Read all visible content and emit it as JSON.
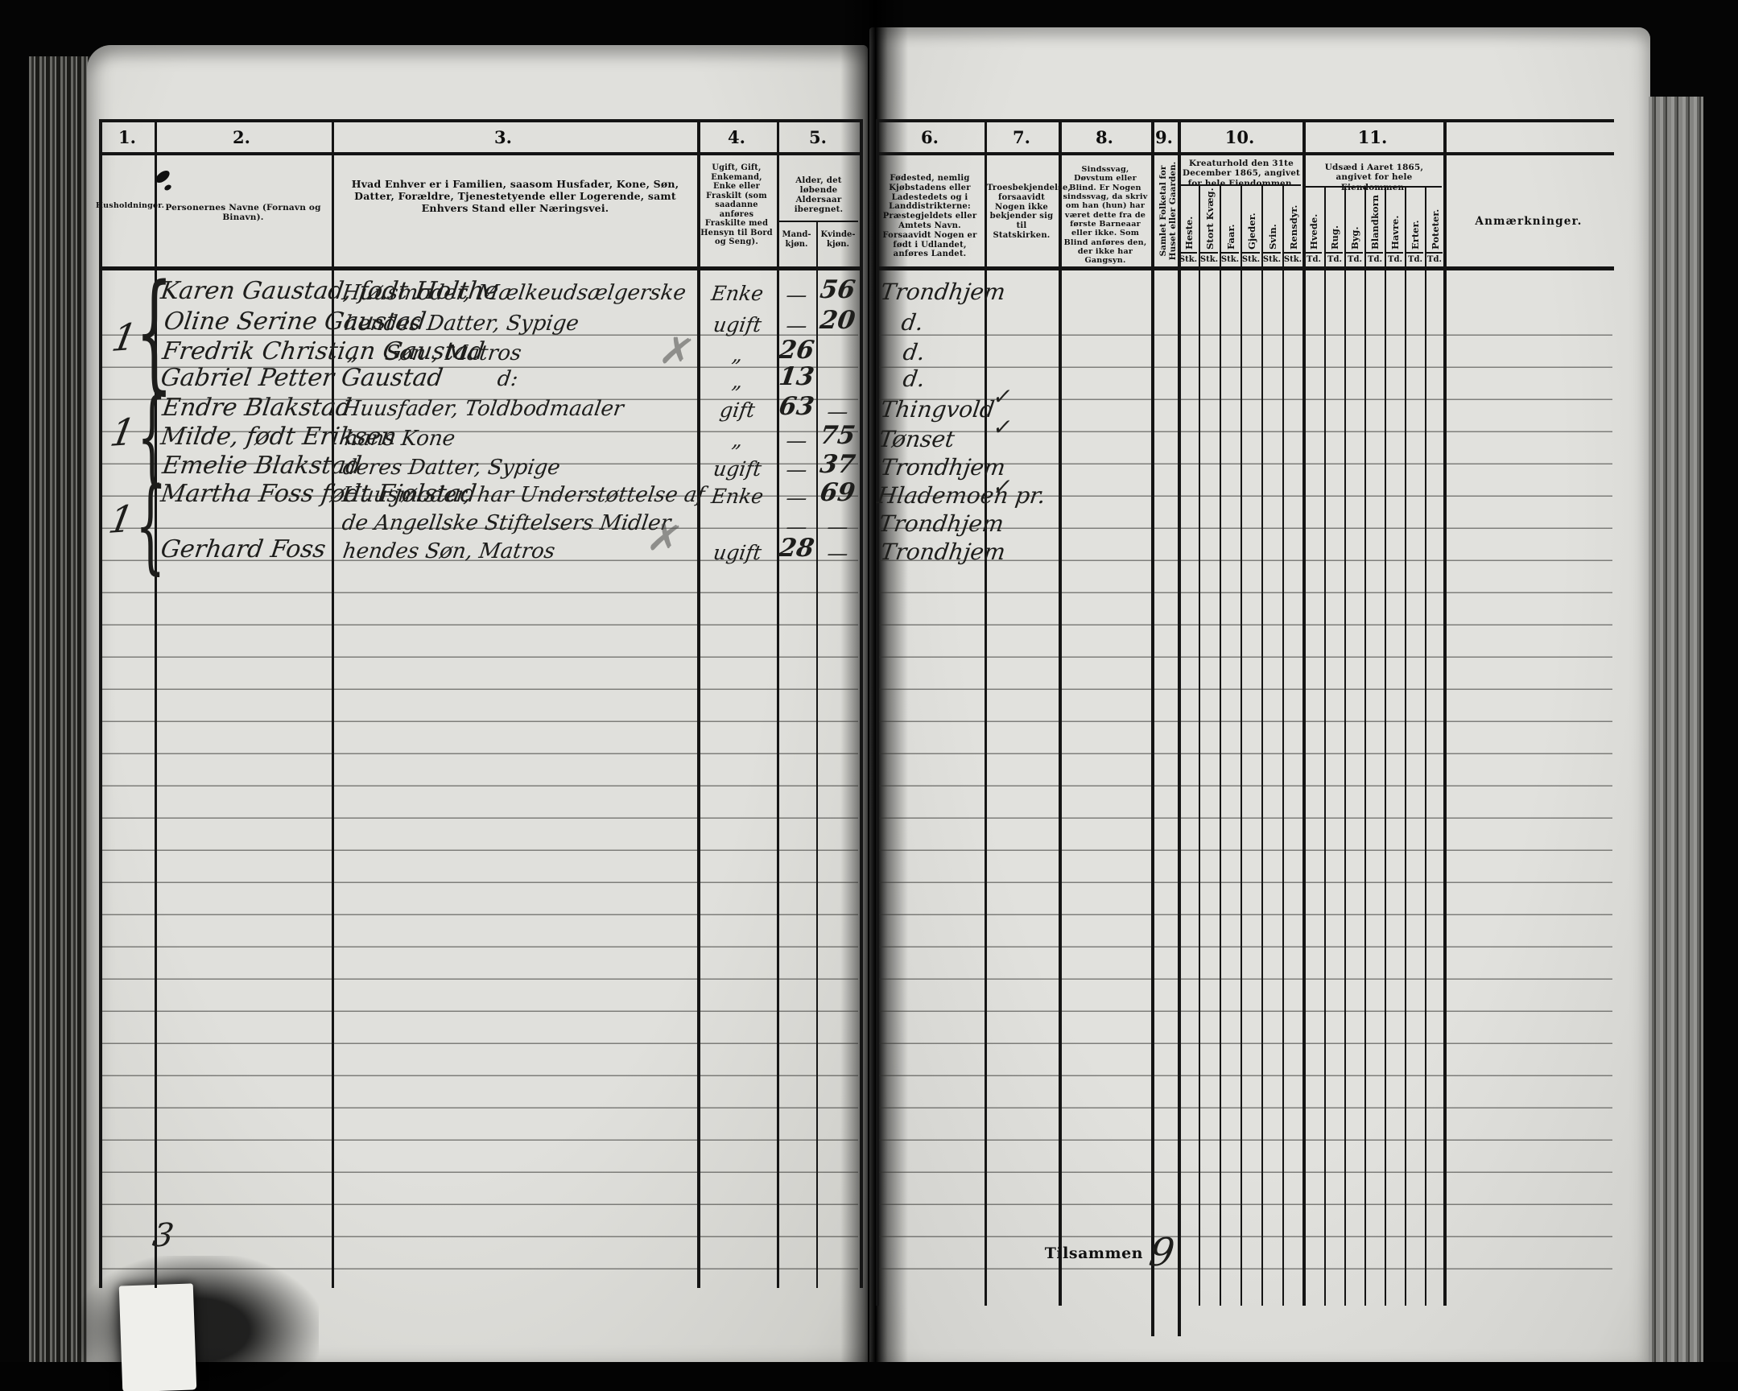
{
  "header": {
    "cols": [
      {
        "num": "1.",
        "title": "Husholdninger."
      },
      {
        "num": "2.",
        "title": "Personernes Navne (Fornavn og Binavn)."
      },
      {
        "num": "3.",
        "title": "Hvad Enhver er i Familien, saasom Husfader, Kone, Søn, Datter, Forældre, Tjenestetyende eller Logerende, samt Enhvers Stand eller Næringsvei."
      },
      {
        "num": "4.",
        "title": "Ugift, Gift, Enkemand, Enke eller Fraskilt (som saadanne anføres Fraskilte med Hensyn til Bord og Seng)."
      },
      {
        "num": "5.",
        "title": "Alder, det løbende Aldersaar iberegnet.",
        "sub": [
          "Mand-\nkjøn.",
          "Kvinde-\nkjøn."
        ]
      },
      {
        "num": "6.",
        "title": "Fødested, nemlig Kjøbstadens eller Ladestedets og i Landdistrikterne: Præstegjeldets eller Amtets Navn. Forsaavidt Nogen er født i Udlandet, anføres Landet."
      },
      {
        "num": "7.",
        "title": "Troesbekjendelse, forsaavidt Nogen ikke bekjender sig til Statskirken."
      },
      {
        "num": "8.",
        "title": "Sindssvag, Døvstum eller Blind. Er Nogen sindssvag, da skriv om han (hun) har været dette fra de første Barneaar eller ikke. Som Blind anføres den, der ikke har Gangsyn."
      },
      {
        "num": "9.",
        "title": "Samlet Folketal for Huset eller Gaarden."
      },
      {
        "num": "10.",
        "title": "Kreaturhold den 31te December 1865, angivet for hele Eiendommen.",
        "sub": [
          "Heste.",
          "Stort Kvæg.",
          "Faar.",
          "Gjeder.",
          "Svin.",
          "Rensdyr."
        ],
        "unit": "Stk."
      },
      {
        "num": "11.",
        "title": "Udsæd i Aaret 1865, angivet for hele Eiendommen.",
        "sub": [
          "Hvede.",
          "Rug.",
          "Byg.",
          "Blandkorn",
          "Havre.",
          "Erter.",
          "Poteter."
        ],
        "unit": "Td."
      },
      {
        "num": "",
        "title": "Anmærkninger."
      }
    ]
  },
  "households": [
    {
      "brace": "{",
      "count": "1"
    },
    {
      "brace": "{",
      "count": "1"
    },
    {
      "brace": "{",
      "count": "1"
    }
  ],
  "rows": [
    {
      "name": "Karen Gaustad, født Holthe",
      "family": "Huusmoder, Mælkeudsælgerske",
      "status": "Enke",
      "age_m": "—",
      "age_f": "56",
      "birth": "Trondhjem",
      "rel": "",
      "pencil": ""
    },
    {
      "name": "Oline Serine Gaustad",
      "family": "hendes Datter, Sypige",
      "status": "ugift",
      "age_m": "—",
      "age_f": "20",
      "birth": "d.",
      "rel": "",
      "pencil": ""
    },
    {
      "name": "Fredrik Christian Gaustad",
      "family": "„    Søn , Matros",
      "status": "„",
      "age_m": "26",
      "age_f": "",
      "birth": "d.",
      "rel": "",
      "pencil": "✗"
    },
    {
      "name": "Gabriel Petter Gaustad",
      "family": "d:",
      "status": "„",
      "age_m": "13",
      "age_f": "",
      "birth": "d.",
      "rel": "",
      "pencil": ""
    },
    {
      "name": "Endre Blakstad",
      "family": "Huusfader, Toldbodmaaler",
      "status": "gift",
      "age_m": "63",
      "age_f": "—",
      "birth": "Thingvold",
      "rel": "✓",
      "pencil": ""
    },
    {
      "name": "Milde, født Eriksen",
      "family": "hans Kone",
      "status": "„",
      "age_m": "—",
      "age_f": "75",
      "birth": "Tønset",
      "rel": "✓",
      "pencil": ""
    },
    {
      "name": "Emelie Blakstad",
      "family": "deres Datter, Sypige",
      "status": "ugift",
      "age_m": "—",
      "age_f": "37",
      "birth": "Trondhjem",
      "rel": "",
      "pencil": ""
    },
    {
      "name": "Martha Foss født Fjølstad",
      "family": "Huusmoder, har Understøttelse af",
      "status": "Enke",
      "age_m": "—",
      "age_f": "69",
      "birth": "Hlademoen pr.",
      "rel": "✓",
      "pencil": ""
    },
    {
      "name": "",
      "family": "de Angellske Stiftelsers Midler",
      "status": "",
      "age_m": "—",
      "age_f": "—",
      "birth": "Trondhjem",
      "rel": "",
      "pencil": ""
    },
    {
      "name": "Gerhard Foss",
      "family": "hendes Søn, Matros",
      "status": "ugift",
      "age_m": "28",
      "age_f": "—",
      "birth": "Trondhjem",
      "rel": "",
      "pencil": "✗"
    }
  ],
  "footer": {
    "households_total": "3",
    "tilsammen_label": "Tilsammen",
    "persons_total": "9"
  }
}
